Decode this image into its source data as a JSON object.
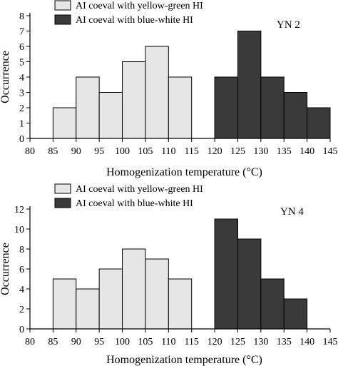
{
  "chart_data": [
    {
      "type": "bar",
      "panel_label": "YN 2",
      "xlabel": "Homogenization temperature (°C)",
      "ylabel": "Occurrence",
      "xlim": [
        80,
        145
      ],
      "ylim": [
        0,
        8
      ],
      "x_ticks": [
        80,
        85,
        90,
        95,
        100,
        105,
        110,
        115,
        120,
        125,
        130,
        135,
        140,
        145
      ],
      "y_ticks": [
        0,
        1,
        2,
        3,
        4,
        5,
        6,
        7,
        8
      ],
      "legend": [
        "AI coeval with yellow-green HI",
        "AI coeval with blue-white HI"
      ],
      "legend_position": "top-left",
      "colors": {
        "yellow_green": "#e6e6e6",
        "blue_white": "#3a3a3a"
      },
      "series": [
        {
          "name": "AI coeval with yellow-green HI",
          "bins": [
            [
              85,
              90
            ],
            [
              90,
              95
            ],
            [
              95,
              100
            ],
            [
              100,
              105
            ],
            [
              105,
              110
            ],
            [
              110,
              115
            ]
          ],
          "values": [
            2,
            4,
            3,
            5,
            6,
            4
          ]
        },
        {
          "name": "AI coeval with blue-white HI",
          "bins": [
            [
              120,
              125
            ],
            [
              125,
              130
            ],
            [
              130,
              135
            ],
            [
              135,
              140
            ],
            [
              140,
              145
            ]
          ],
          "values": [
            4,
            7,
            4,
            3,
            2
          ]
        }
      ]
    },
    {
      "type": "bar",
      "panel_label": "YN 4",
      "xlabel": "Homogenization temperature (°C)",
      "ylabel": "Occurrence",
      "xlim": [
        80,
        145
      ],
      "ylim": [
        0,
        12
      ],
      "x_ticks": [
        80,
        85,
        90,
        95,
        100,
        105,
        110,
        115,
        120,
        125,
        130,
        135,
        140,
        145
      ],
      "y_ticks": [
        0,
        2,
        4,
        6,
        8,
        10,
        12
      ],
      "legend": [
        "AI coeval with yellow-green HI",
        "AI coeval with blue-white HI"
      ],
      "legend_position": "top-left",
      "colors": {
        "yellow_green": "#e6e6e6",
        "blue_white": "#3a3a3a"
      },
      "series": [
        {
          "name": "AI coeval with yellow-green HI",
          "bins": [
            [
              85,
              90
            ],
            [
              90,
              95
            ],
            [
              95,
              100
            ],
            [
              100,
              105
            ],
            [
              105,
              110
            ],
            [
              110,
              115
            ]
          ],
          "values": [
            5,
            4,
            6,
            8,
            7,
            5
          ]
        },
        {
          "name": "AI coeval with blue-white HI",
          "bins": [
            [
              120,
              125
            ],
            [
              125,
              130
            ],
            [
              130,
              135
            ],
            [
              135,
              140
            ]
          ],
          "values": [
            11,
            9,
            5,
            3
          ]
        }
      ]
    }
  ]
}
